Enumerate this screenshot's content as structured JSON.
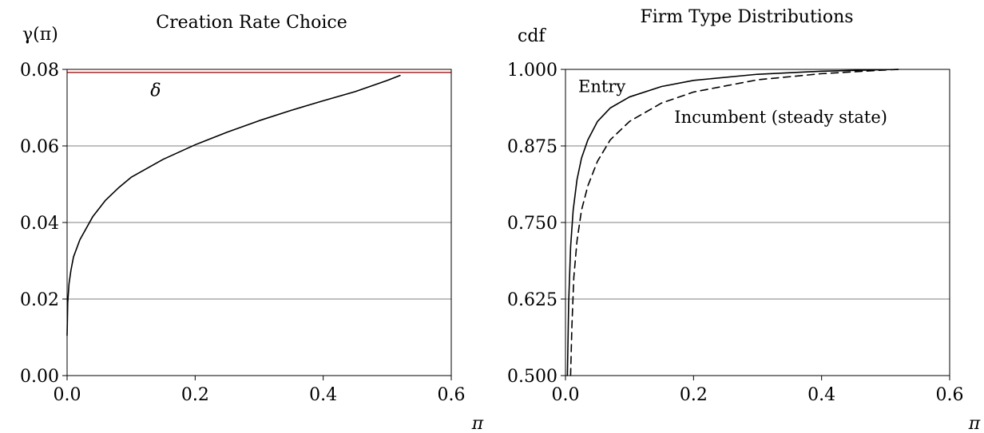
{
  "chart_data": [
    {
      "type": "line",
      "title": "Creation Rate Choice",
      "ylabel": "γ(π)",
      "xlabel": "π",
      "xlim": [
        0,
        0.6
      ],
      "ylim": [
        0,
        0.08
      ],
      "xticks": [
        "0.0",
        "0.2",
        "0.4",
        "0.6"
      ],
      "xtick_values": [
        0,
        0.2,
        0.4,
        0.6
      ],
      "yticks": [
        "0.00",
        "0.02",
        "0.04",
        "0.06",
        "0.08"
      ],
      "ytick_values": [
        0,
        0.02,
        0.04,
        0.06,
        0.08
      ],
      "grid": "horizontal",
      "annotations": [
        {
          "text": "δ",
          "x": 0.13,
          "y": 0.073
        }
      ],
      "hline": {
        "y": 0.0792,
        "color": "#d62728",
        "label": "δ"
      },
      "series": [
        {
          "style": "solid",
          "color": "#000000",
          "x": [
            0.0,
            0.001,
            0.003,
            0.006,
            0.01,
            0.02,
            0.04,
            0.06,
            0.08,
            0.1,
            0.15,
            0.2,
            0.25,
            0.3,
            0.35,
            0.4,
            0.45,
            0.5,
            0.52
          ],
          "y": [
            0.0105,
            0.019,
            0.024,
            0.0275,
            0.031,
            0.0355,
            0.0415,
            0.0458,
            0.049,
            0.0518,
            0.0565,
            0.0603,
            0.0636,
            0.0666,
            0.0693,
            0.0718,
            0.0742,
            0.0771,
            0.0784
          ]
        }
      ]
    },
    {
      "type": "line",
      "title": "Firm Type Distributions",
      "ylabel": "cdf",
      "xlabel": "π",
      "xlim": [
        0,
        0.6
      ],
      "ylim": [
        0.5,
        1.0
      ],
      "xticks": [
        "0.0",
        "0.2",
        "0.4",
        "0.6"
      ],
      "xtick_values": [
        0,
        0.2,
        0.4,
        0.6
      ],
      "yticks": [
        "0.500",
        "0.625",
        "0.750",
        "0.875",
        "1.000"
      ],
      "ytick_values": [
        0.5,
        0.625,
        0.75,
        0.875,
        1.0
      ],
      "grid": "horizontal",
      "annotations": [
        {
          "text": "Entry",
          "x": 0.02,
          "y": 0.963
        },
        {
          "text": "Incumbent (steady state)",
          "x": 0.17,
          "y": 0.913
        }
      ],
      "series": [
        {
          "name": "Entry",
          "style": "solid",
          "color": "#000000",
          "x": [
            0.003,
            0.005,
            0.008,
            0.012,
            0.018,
            0.025,
            0.035,
            0.05,
            0.07,
            0.1,
            0.15,
            0.2,
            0.3,
            0.4,
            0.5,
            0.52
          ],
          "y": [
            0.5,
            0.62,
            0.71,
            0.77,
            0.82,
            0.855,
            0.885,
            0.915,
            0.937,
            0.955,
            0.972,
            0.982,
            0.992,
            0.997,
            0.9995,
            1.0
          ]
        },
        {
          "name": "Incumbent (steady state)",
          "style": "dashed",
          "color": "#000000",
          "x": [
            0.008,
            0.01,
            0.013,
            0.018,
            0.025,
            0.035,
            0.05,
            0.07,
            0.1,
            0.15,
            0.2,
            0.3,
            0.4,
            0.5,
            0.52
          ],
          "y": [
            0.5,
            0.58,
            0.66,
            0.72,
            0.77,
            0.81,
            0.85,
            0.885,
            0.915,
            0.945,
            0.963,
            0.983,
            0.993,
            0.999,
            1.0
          ]
        }
      ]
    }
  ]
}
